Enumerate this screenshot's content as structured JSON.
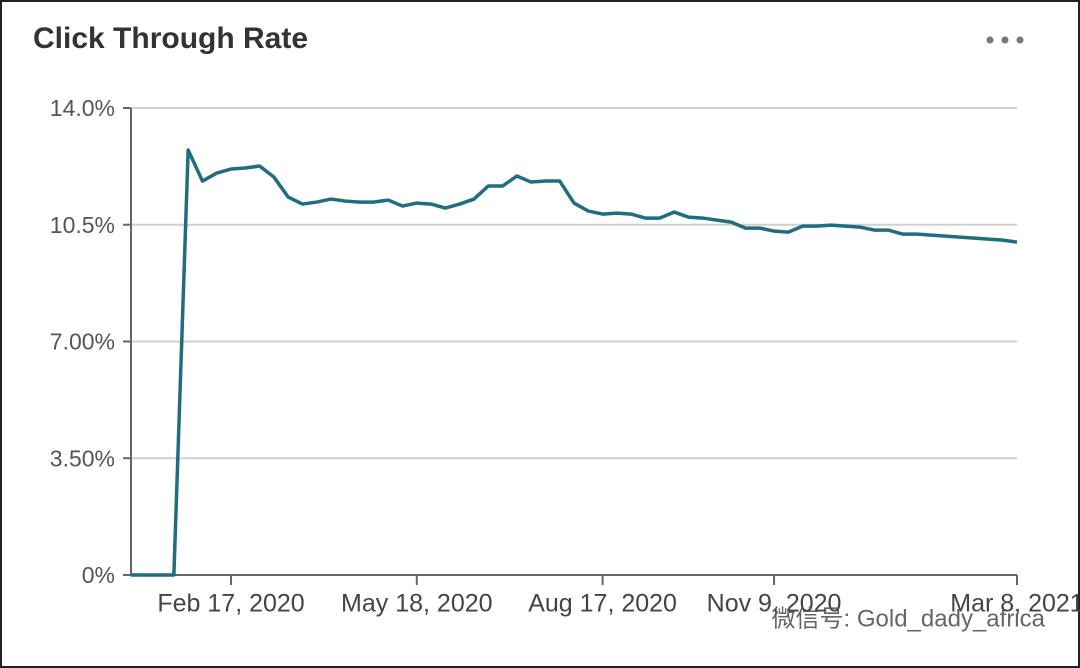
{
  "chart_data": {
    "type": "line",
    "title": "Click Through Rate",
    "x": [
      "2019-12-30",
      "2020-01-06",
      "2020-01-13",
      "2020-01-20",
      "2020-01-27",
      "2020-02-03",
      "2020-02-10",
      "2020-02-17",
      "2020-02-24",
      "2020-03-02",
      "2020-03-09",
      "2020-03-16",
      "2020-03-23",
      "2020-03-30",
      "2020-04-06",
      "2020-04-13",
      "2020-04-20",
      "2020-04-27",
      "2020-05-04",
      "2020-05-11",
      "2020-05-18",
      "2020-05-25",
      "2020-06-01",
      "2020-06-08",
      "2020-06-15",
      "2020-06-22",
      "2020-06-29",
      "2020-07-06",
      "2020-07-13",
      "2020-07-20",
      "2020-07-27",
      "2020-08-03",
      "2020-08-10",
      "2020-08-17",
      "2020-08-24",
      "2020-08-31",
      "2020-09-07",
      "2020-09-14",
      "2020-09-21",
      "2020-09-28",
      "2020-10-05",
      "2020-10-12",
      "2020-10-19",
      "2020-10-26",
      "2020-11-02",
      "2020-11-09",
      "2020-11-16",
      "2020-11-23",
      "2020-11-30",
      "2020-12-07",
      "2020-12-14",
      "2020-12-21",
      "2020-12-28",
      "2021-01-04",
      "2021-01-11",
      "2021-01-18",
      "2021-01-25",
      "2021-02-01",
      "2021-02-08",
      "2021-02-15",
      "2021-02-22",
      "2021-03-01",
      "2021-03-08"
    ],
    "series": [
      {
        "name": "Click Through Rate",
        "color": "#1f6e7e",
        "values": [
          0,
          0,
          0,
          0,
          12.74,
          11.81,
          12.05,
          12.17,
          12.2,
          12.26,
          11.93,
          11.33,
          11.12,
          11.18,
          11.27,
          11.21,
          11.18,
          11.18,
          11.24,
          11.06,
          11.15,
          11.12,
          11.0,
          11.12,
          11.27,
          11.66,
          11.66,
          11.96,
          11.78,
          11.81,
          11.81,
          11.15,
          10.91,
          10.82,
          10.85,
          10.82,
          10.7,
          10.7,
          10.88,
          10.73,
          10.7,
          10.64,
          10.58,
          10.4,
          10.4,
          10.31,
          10.28,
          10.46,
          10.46,
          10.49,
          10.46,
          10.43,
          10.34,
          10.34,
          10.22,
          10.22,
          10.19,
          10.16,
          10.13,
          10.1,
          10.07,
          10.04,
          9.98
        ]
      }
    ],
    "xlim": [
      "2019-12-30",
      "2021-03-08"
    ],
    "xticks": [
      {
        "value": "2020-02-17",
        "label": "Feb 17, 2020"
      },
      {
        "value": "2020-05-18",
        "label": "May 18, 2020"
      },
      {
        "value": "2020-08-17",
        "label": "Aug 17, 2020"
      },
      {
        "value": "2020-11-09",
        "label": "Nov 9, 2020"
      },
      {
        "value": "2021-03-08",
        "label": "Mar 8, 2021"
      }
    ],
    "ylim": [
      0,
      14
    ],
    "yticks": [
      {
        "value": 0,
        "label": "0%"
      },
      {
        "value": 3.5,
        "label": "3.50%"
      },
      {
        "value": 7,
        "label": "7.00%"
      },
      {
        "value": 10.5,
        "label": "10.5%"
      },
      {
        "value": 14,
        "label": "14.0%"
      }
    ],
    "grid": true
  },
  "watermark": "微信号: Gold_dady_africa"
}
